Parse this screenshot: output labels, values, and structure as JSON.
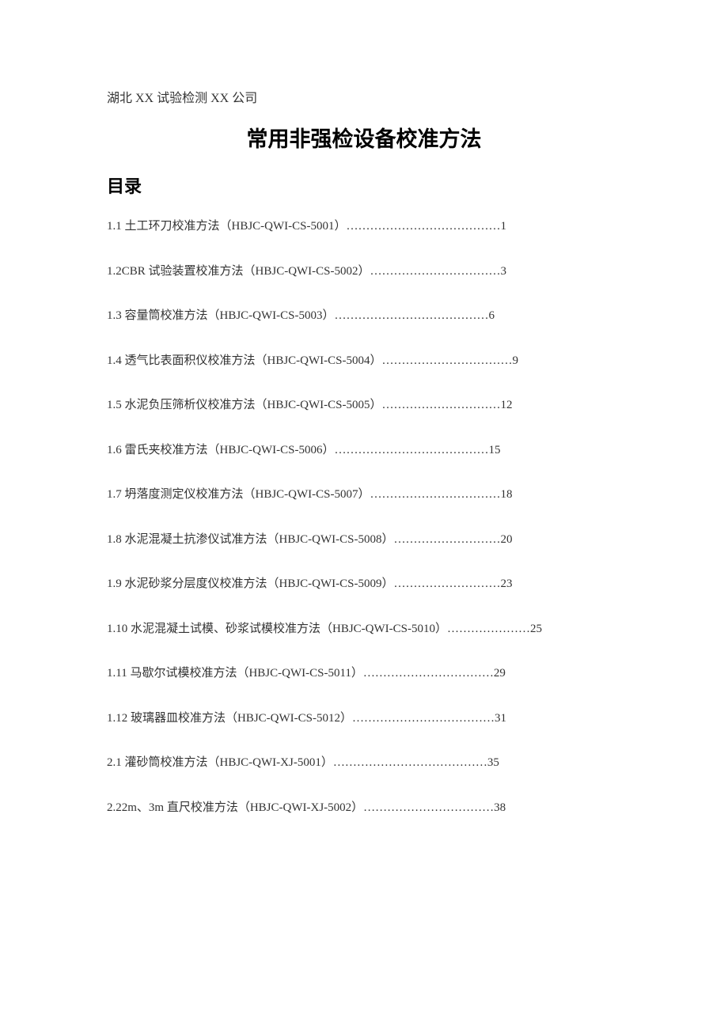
{
  "header": {
    "company": "湖北 XX 试验检测 XX 公司"
  },
  "title": "常用非强检设备校准方法",
  "toc": {
    "heading": "目录",
    "items": [
      {
        "text": "1.1 土工环刀校准方法（HBJC-QWI-CS-5001）…………………………………1"
      },
      {
        "text": "1.2CBR 试验装置校准方法（HBJC-QWI-CS-5002）……………………………3"
      },
      {
        "text": "1.3 容量筒校准方法（HBJC-QWI-CS-5003）…………………………………6"
      },
      {
        "text": "1.4 透气比表面积仪校准方法（HBJC-QWI-CS-5004）……………………………9"
      },
      {
        "text": "1.5 水泥负压筛析仪校准方法（HBJC-QWI-CS-5005）…………………………12"
      },
      {
        "text": "1.6 雷氏夹校准方法（HBJC-QWI-CS-5006）…………………………………15"
      },
      {
        "text": "1.7 坍落度测定仪校准方法（HBJC-QWI-CS-5007）……………………………18"
      },
      {
        "text": "1.8 水泥混凝土抗渗仪试准方法（HBJC-QWI-CS-5008）………………………20"
      },
      {
        "text": "1.9 水泥砂浆分层度仪校准方法（HBJC-QWI-CS-5009）………………………23"
      },
      {
        "text": "1.10 水泥混凝土试模、砂浆试模校准方法（HBJC-QWI-CS-5010）…………………25"
      },
      {
        "text": "1.11 马歇尔试模校准方法（HBJC-QWI-CS-5011）……………………………29"
      },
      {
        "text": "1.12 玻璃器皿校准方法（HBJC-QWI-CS-5012）………………………………31"
      },
      {
        "text": "2.1 灌砂筒校准方法（HBJC-QWI-XJ-5001）…………………………………35"
      },
      {
        "text": "2.22m、3m 直尺校准方法（HBJC-QWI-XJ-5002）……………………………38"
      }
    ]
  },
  "style": {
    "background_color": "#ffffff",
    "text_color": "#333333",
    "title_color": "#000000",
    "body_fontsize": 15,
    "title_fontsize": 27,
    "toc_title_fontsize": 22,
    "company_fontsize": 16,
    "line_spacing": 34
  }
}
